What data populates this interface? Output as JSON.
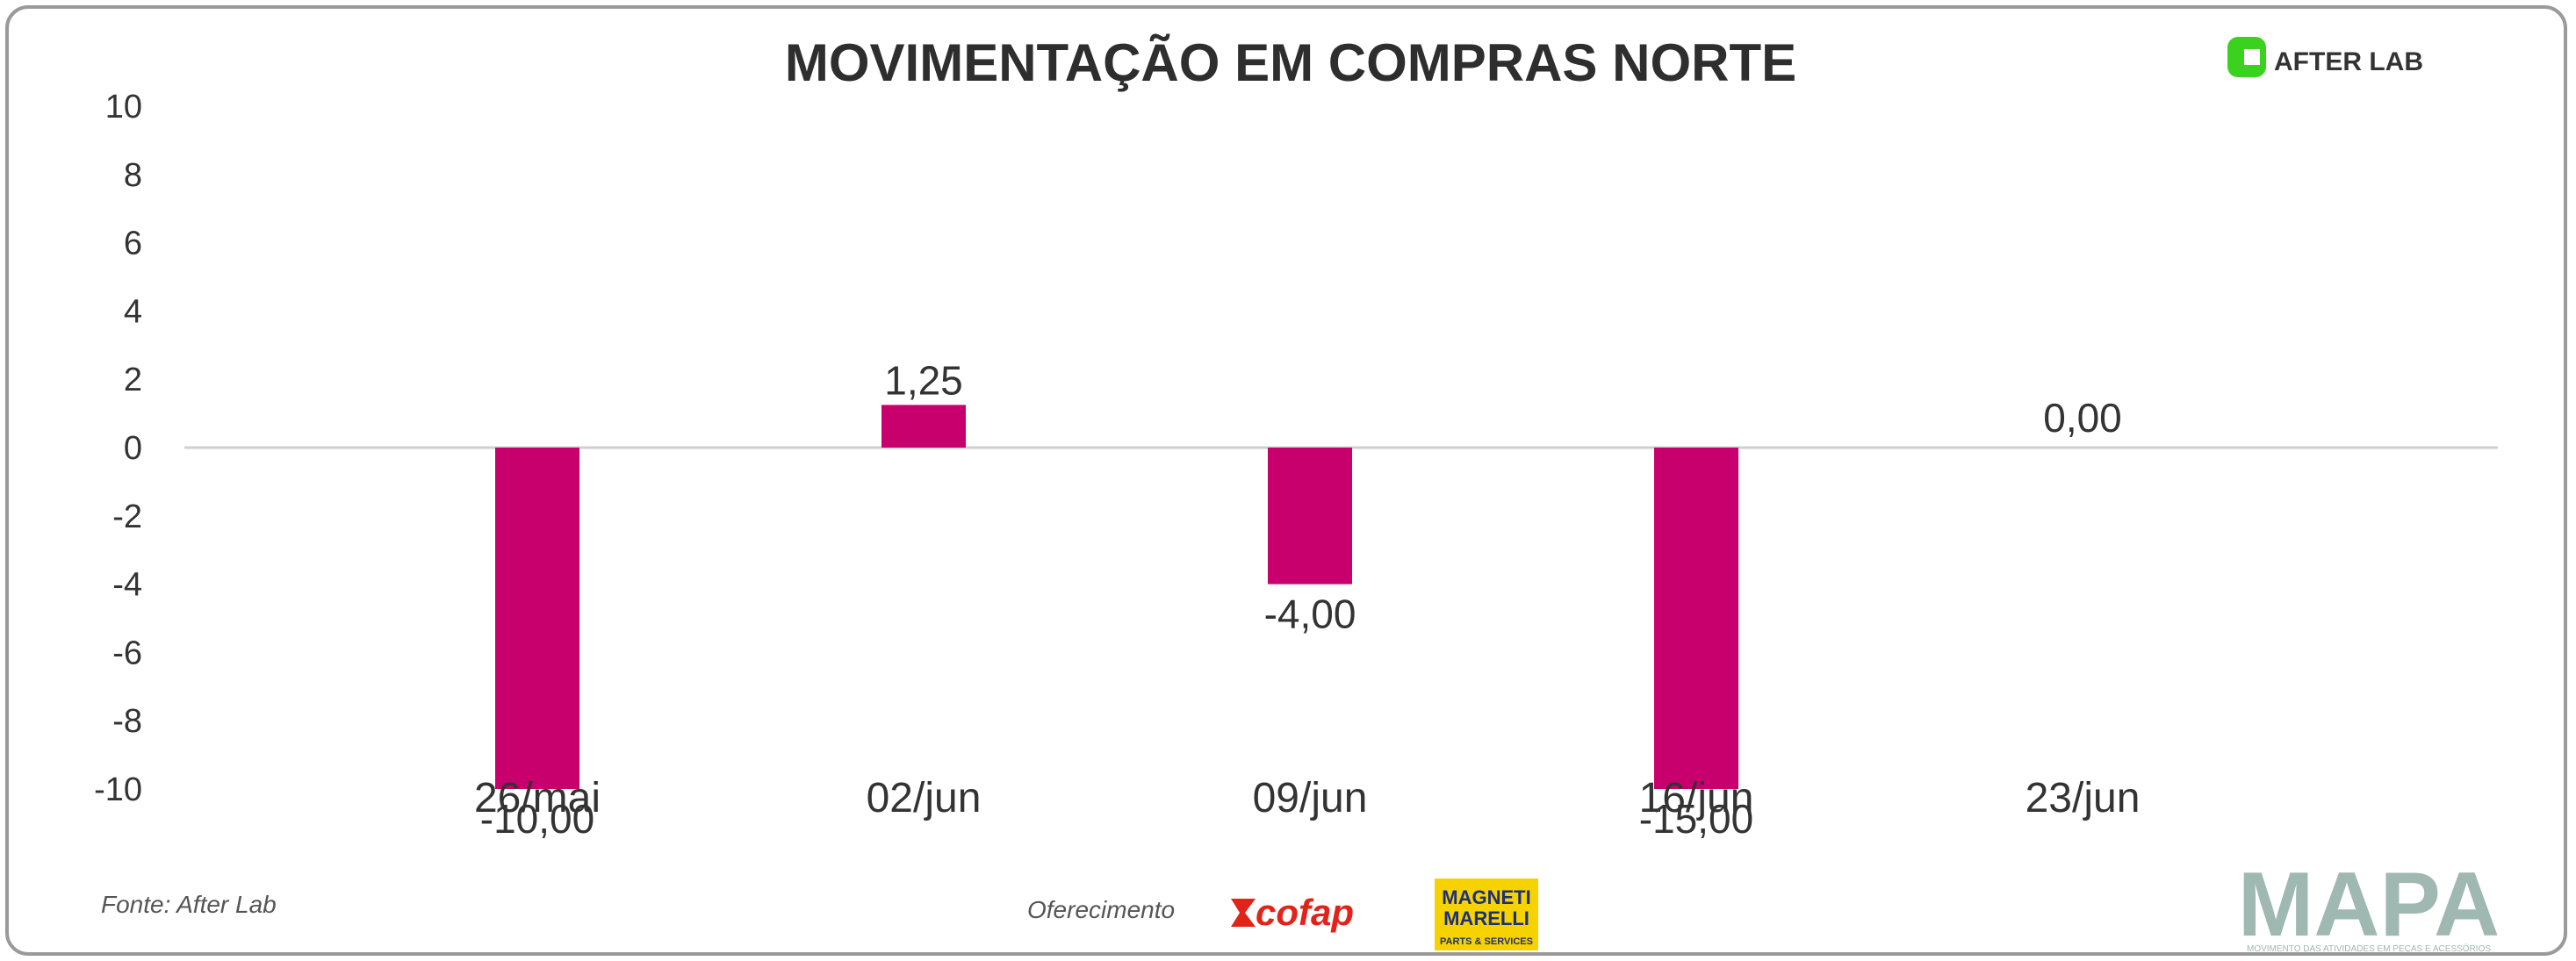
{
  "header": {
    "title": "MOVIMENTAÇÃO EM COMPRAS NORTE",
    "brand_logo": "AFTER LAB"
  },
  "chart_data": {
    "type": "bar",
    "title": "MOVIMENTAÇÃO EM COMPRAS NORTE",
    "xlabel": "",
    "ylabel": "",
    "categories": [
      "26/mai",
      "02/jun",
      "09/jun",
      "16/jun",
      "23/jun"
    ],
    "values": [
      -10.0,
      1.25,
      -4.0,
      -15.0,
      0.0
    ],
    "value_labels": [
      "-10,00",
      "1,25",
      "-4,00",
      "-15,00",
      "0,00"
    ],
    "ylim": [
      -10,
      10
    ],
    "yticks": [
      "10",
      "8",
      "6",
      "4",
      "2",
      "0",
      "-2",
      "-4",
      "-6",
      "-8",
      "-10"
    ],
    "bar_color": "#c8006e",
    "grid": false,
    "legend": "none"
  },
  "footer": {
    "source": "Fonte: After Lab",
    "sponsor_label": "Oferecimento",
    "sponsor1": "cofap",
    "sponsor2_line1": "MAGNETI",
    "sponsor2_line2": "MARELLI",
    "sponsor2_line3": "PARTS & SERVICES",
    "mapa_logo": "MAPA",
    "mapa_tagline": "MOVIMENTO DAS ATIVIDADES EM PEÇAS E ACESSÓRIOS"
  },
  "colors": {
    "bar": "#c8006e",
    "afterlab_green": "#3ad11f",
    "cofap_red": "#e2231a",
    "magneti_yellow": "#f6d200",
    "magneti_blue": "#1c2f7a",
    "mapa_gray": "#9fb8b2"
  }
}
